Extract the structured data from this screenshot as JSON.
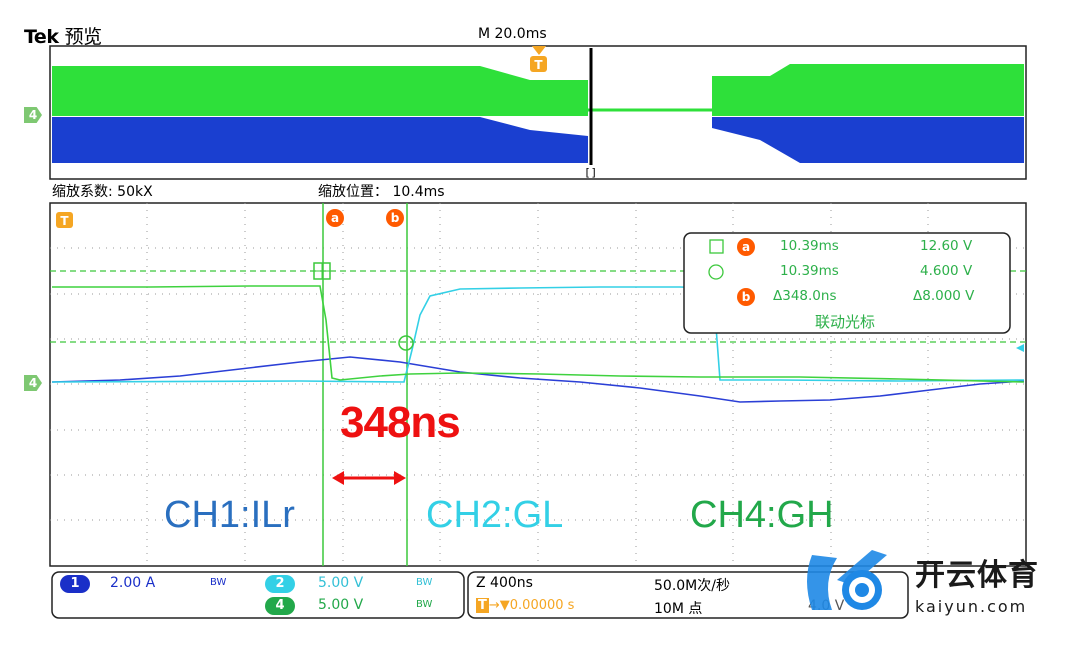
{
  "header": {
    "brand": "Tek",
    "mode": "预览",
    "timebase": "M 20.0ms"
  },
  "zoom": {
    "factor": "缩放系数: 50kX",
    "position": "缩放位置： 10.4ms"
  },
  "cursors": {
    "a": "a",
    "b": "b",
    "trigger": "T"
  },
  "annotations": {
    "delta": "348ns",
    "ch1": "CH1:ILr",
    "ch2": "CH2:GL",
    "ch4": "CH4:GH"
  },
  "readout": {
    "row1_time": "10.39ms",
    "row1_val": "12.60 V",
    "row2_time": "10.39ms",
    "row2_val": "4.600 V",
    "row3_time": "Δ348.0ns",
    "row3_val": "Δ8.000 V",
    "link": "联动光标"
  },
  "channels": [
    {
      "num": "1",
      "scale": "2.00 A",
      "bw": "BW"
    },
    {
      "num": "2",
      "scale": "5.00 V",
      "bw": "BW"
    },
    {
      "num": "4",
      "scale": "5.00 V",
      "bw": "BW"
    }
  ],
  "horizontal": {
    "zoom": "Z 400ns",
    "rate": "50.0M次/秒",
    "trig_delay": "0.00000 s",
    "points": "10M 点",
    "trig_level": "4.0 V"
  },
  "ground_marker": "4",
  "watermark": {
    "brand": "开云体育",
    "url": "kaiyun.com"
  },
  "colors": {
    "ch1": "#2b3fd6",
    "ch2": "#33d0e6",
    "ch4": "#3fd23f",
    "cursor": "#3cc83c",
    "marker": "#ff5a00",
    "orange": "#f5a623"
  }
}
